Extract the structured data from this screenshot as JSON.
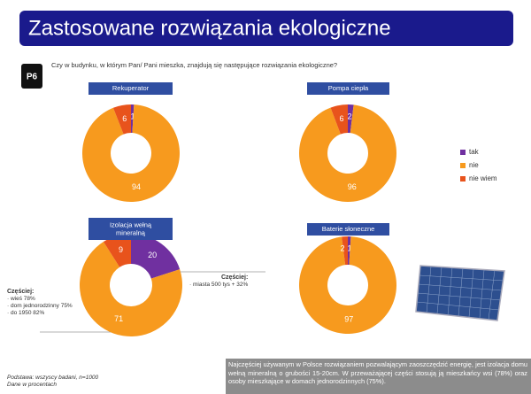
{
  "header": {
    "title": "Zastosowane rozwiązania ekologiczne"
  },
  "question": {
    "code": "P6",
    "text": "Czy w budynku, w którym Pan/ Pani mieszka, znajdują się następujące rozwiązania ekologiczne?"
  },
  "chart_data": [
    {
      "type": "pie",
      "title": "Rekuperator",
      "categories": [
        "tak",
        "nie",
        "nie wiem"
      ],
      "values": [
        1,
        94,
        6
      ],
      "colors": [
        "#7030a0",
        "#f79a1e",
        "#e8531c"
      ]
    },
    {
      "type": "pie",
      "title": "Pompa ciepła",
      "categories": [
        "tak",
        "nie",
        "nie wiem"
      ],
      "values": [
        2,
        96,
        6
      ],
      "colors": [
        "#7030a0",
        "#f79a1e",
        "#e8531c"
      ]
    },
    {
      "type": "pie",
      "title": "Izolacja wełną mineralną",
      "categories": [
        "tak",
        "nie",
        "nie wiem"
      ],
      "values": [
        20,
        71,
        9
      ],
      "colors": [
        "#7030a0",
        "#f79a1e",
        "#e8531c"
      ]
    },
    {
      "type": "pie",
      "title": "Baterie słoneczne",
      "categories": [
        "tak",
        "nie",
        "nie wiem"
      ],
      "values": [
        1,
        97,
        2
      ],
      "colors": [
        "#7030a0",
        "#f79a1e",
        "#e8531c"
      ]
    }
  ],
  "annotations": [
    {
      "heading": "Częściej:",
      "items": [
        "· wieś 78%",
        "· dom jednorodzinny 75%",
        "· do 1950 82%"
      ]
    },
    {
      "heading": "Częściej:",
      "items": [
        "· miasta 500 tys + 32%"
      ]
    }
  ],
  "footer": {
    "base": "Podstawa: wszyscy badani, n=1000",
    "note": "Dane w procentach"
  },
  "summary": "Najczęściej używanym w Polsce rozwiązaniem pozwalającym zaoszczędzić energię, jest izolacja domu wełną mineralną o grubości 15-20cm. W przeważającej części stosują ją mieszkańcy wsi (78%) oraz osoby mieszkające w domach jednorodzinnych (75%)."
}
